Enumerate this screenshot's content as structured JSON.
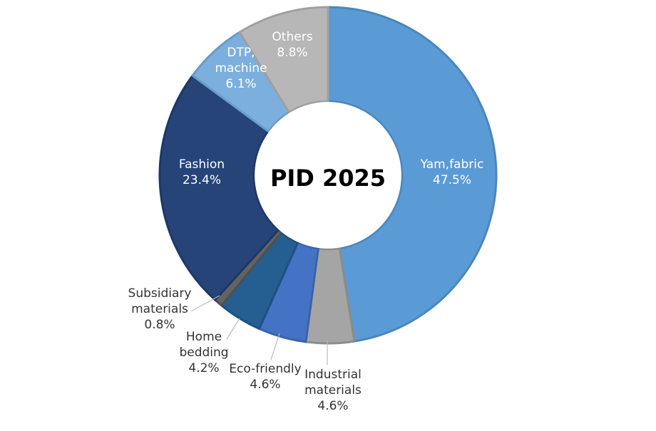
{
  "chart_data": {
    "type": "pie",
    "title": "PID 2025",
    "start_angle_deg": 0,
    "inner_radius_ratio": 0.44,
    "slices": [
      {
        "label_lines": [
          "Yam,fabric"
        ],
        "value": 47.5,
        "value_label": "47.5%",
        "color": "#5b9bd5",
        "border": "#4a86bd",
        "label_pos": "inside"
      },
      {
        "label_lines": [
          "Industrial",
          "materials"
        ],
        "value": 4.6,
        "value_label": "4.6%",
        "color": "#a5a5a5",
        "border": "#8c8c8c",
        "label_pos": "outside"
      },
      {
        "label_lines": [
          "Eco-friendly"
        ],
        "value": 4.6,
        "value_label": "4.6%",
        "color": "#4472c4",
        "border": "#3a63ad",
        "label_pos": "outside"
      },
      {
        "label_lines": [
          "Home",
          "bedding"
        ],
        "value": 4.2,
        "value_label": "4.2%",
        "color": "#255e91",
        "border": "#1f5080",
        "label_pos": "outside"
      },
      {
        "label_lines": [
          "Subsidiary",
          "materials"
        ],
        "value": 0.8,
        "value_label": "0.8%",
        "color": "#636363",
        "border": "#4f4f4f",
        "label_pos": "outside"
      },
      {
        "label_lines": [
          "Fashion"
        ],
        "value": 23.4,
        "value_label": "23.4%",
        "color": "#264478",
        "border": "#1d3866",
        "label_pos": "inside"
      },
      {
        "label_lines": [
          "DTP,",
          "machine"
        ],
        "value": 6.1,
        "value_label": "6.1%",
        "color": "#7cafdd",
        "border": "#6a9bc9",
        "label_pos": "inside"
      },
      {
        "label_lines": [
          "Others"
        ],
        "value": 8.8,
        "value_label": "8.8%",
        "color": "#b7b7b7",
        "border": "#a0a0a0",
        "label_pos": "inside"
      }
    ]
  }
}
